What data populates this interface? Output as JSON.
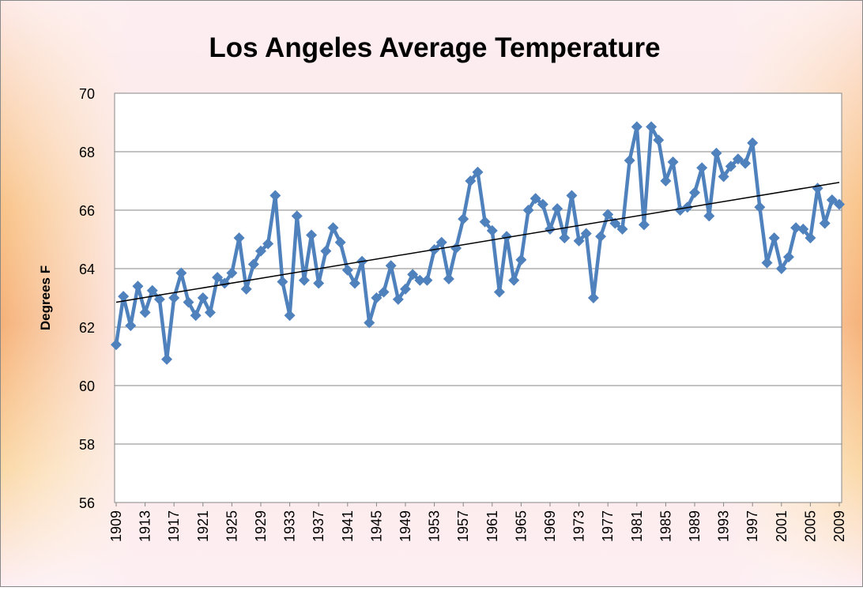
{
  "chart_data": {
    "type": "line",
    "title": "Los Angeles Average Temperature",
    "y_label": "Degrees F",
    "x": [
      1909,
      1910,
      1911,
      1912,
      1913,
      1914,
      1915,
      1916,
      1917,
      1918,
      1919,
      1920,
      1921,
      1922,
      1923,
      1924,
      1925,
      1926,
      1927,
      1928,
      1929,
      1930,
      1931,
      1932,
      1933,
      1934,
      1935,
      1936,
      1937,
      1938,
      1939,
      1940,
      1941,
      1942,
      1943,
      1944,
      1945,
      1946,
      1947,
      1948,
      1949,
      1950,
      1951,
      1952,
      1953,
      1954,
      1955,
      1956,
      1957,
      1958,
      1959,
      1960,
      1961,
      1962,
      1963,
      1964,
      1965,
      1966,
      1967,
      1968,
      1969,
      1970,
      1971,
      1972,
      1973,
      1974,
      1975,
      1976,
      1977,
      1978,
      1979,
      1980,
      1981,
      1982,
      1983,
      1984,
      1985,
      1986,
      1987,
      1988,
      1989,
      1990,
      1991,
      1992,
      1993,
      1994,
      1995,
      1996,
      1997,
      1998,
      1999,
      2000,
      2001,
      2002,
      2003,
      2004,
      2005,
      2006,
      2007,
      2008,
      2009
    ],
    "series": [
      {
        "color": "#4f81bd",
        "values": [
          61.4,
          63.05,
          62.05,
          63.4,
          62.5,
          63.25,
          62.95,
          60.9,
          63.0,
          63.85,
          62.85,
          62.4,
          63.0,
          62.5,
          63.7,
          63.5,
          63.85,
          65.05,
          63.3,
          64.15,
          64.6,
          64.85,
          66.5,
          63.55,
          62.4,
          65.8,
          63.6,
          65.15,
          63.5,
          64.6,
          65.4,
          64.9,
          63.95,
          63.5,
          64.25,
          62.15,
          63.0,
          63.2,
          64.1,
          62.95,
          63.3,
          63.8,
          63.6,
          63.6,
          64.65,
          64.9,
          63.65,
          64.7,
          65.7,
          67.0,
          67.3,
          65.6,
          65.3,
          63.2,
          65.1,
          63.6,
          64.3,
          66.0,
          66.4,
          66.2,
          65.35,
          66.05,
          65.05,
          66.5,
          64.95,
          65.2,
          63.0,
          65.1,
          65.85,
          65.55,
          65.35,
          67.7,
          68.85,
          65.5,
          68.85,
          68.4,
          67.0,
          67.65,
          66.0,
          66.1,
          66.6,
          67.45,
          65.8,
          67.95,
          67.15,
          67.5,
          67.75,
          67.6,
          68.3,
          66.1,
          64.2,
          65.05,
          64.0,
          64.4,
          65.4,
          65.35,
          65.05,
          66.75,
          65.55,
          66.35,
          66.2
        ]
      }
    ],
    "trendline": {
      "color": "#000000",
      "x": [
        1909,
        2009
      ],
      "values": [
        62.85,
        66.95
      ]
    },
    "xlim": [
      1909,
      2009
    ],
    "xticks": [
      1909,
      1913,
      1917,
      1921,
      1925,
      1929,
      1933,
      1937,
      1941,
      1945,
      1949,
      1953,
      1957,
      1961,
      1965,
      1969,
      1973,
      1977,
      1981,
      1985,
      1989,
      1993,
      1997,
      2001,
      2005,
      2009
    ],
    "ylim": [
      56,
      70
    ],
    "yticks": [
      56,
      58,
      60,
      62,
      64,
      66,
      68,
      70
    ],
    "grid": true
  }
}
